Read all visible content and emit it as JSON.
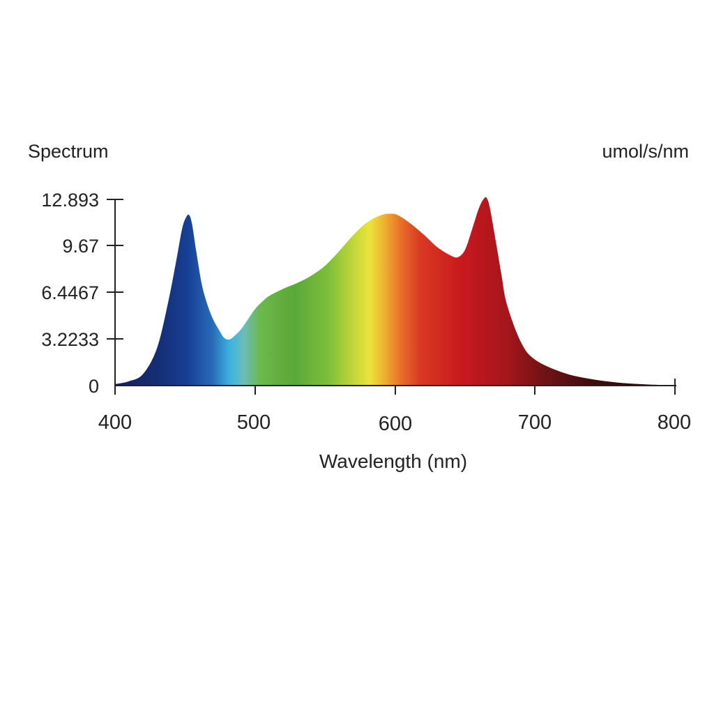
{
  "chart_data": {
    "type": "area",
    "title": "Spectrum",
    "unit_label": "umol/s/nm",
    "xlabel": "Wavelength (nm)",
    "ylabel": "",
    "xlim": [
      400,
      800
    ],
    "ylim": [
      0,
      12.893
    ],
    "x_ticks": [
      "400",
      "500",
      "600",
      "700",
      "800"
    ],
    "y_ticks": [
      "12.893",
      "9.67",
      "6.4467",
      "3.2233",
      "0"
    ],
    "grid": false,
    "legend": "none",
    "fill": "visible-spectrum gradient by wavelength",
    "series": [
      {
        "x": [
          400,
          410,
          420,
          430,
          438,
          444,
          448,
          451,
          453,
          455,
          458,
          462,
          466,
          470,
          474,
          478,
          482,
          486,
          490,
          495,
          500,
          505,
          510,
          520,
          530,
          540,
          550,
          560,
          570,
          580,
          590,
          597,
          602,
          610,
          620,
          630,
          640,
          645,
          650,
          655,
          660,
          664,
          666,
          668,
          672,
          676,
          680,
          690,
          700,
          720,
          740,
          760,
          780,
          800
        ],
        "y": [
          0.1,
          0.3,
          0.8,
          2.6,
          5.8,
          8.8,
          10.9,
          11.7,
          11.8,
          11.2,
          9.3,
          7.0,
          5.6,
          4.6,
          3.9,
          3.3,
          3.2,
          3.5,
          3.9,
          4.6,
          5.3,
          5.8,
          6.2,
          6.7,
          7.1,
          7.6,
          8.3,
          9.3,
          10.4,
          11.3,
          11.8,
          11.9,
          11.8,
          11.3,
          10.5,
          9.6,
          9.0,
          8.9,
          9.4,
          10.8,
          12.3,
          13.0,
          12.9,
          12.2,
          10.0,
          7.7,
          5.6,
          3.0,
          1.8,
          0.9,
          0.45,
          0.2,
          0.08,
          0.02
        ]
      }
    ]
  }
}
